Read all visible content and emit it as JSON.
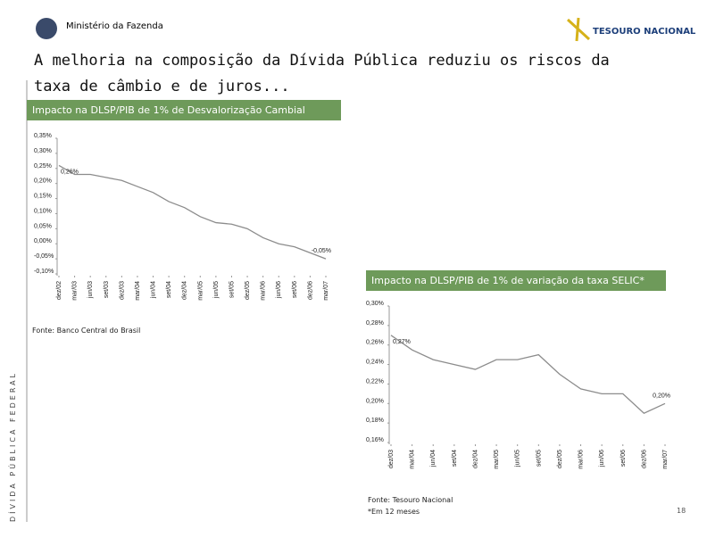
{
  "header": {
    "ministry": "Ministério da Fazenda",
    "logo": "TESOURO NACIONAL"
  },
  "title": "A melhoria na composição da Dívida Pública reduziu os riscos da taxa de câmbio e de juros...",
  "side_label": "DÍVIDA PÚBLICA FEDERAL",
  "page_number": "18",
  "chart_data": [
    {
      "type": "line",
      "title": "Impacto na DLSP/PIB de 1% de Desvalorização Cambial",
      "source": "Fonte: Banco Central do Brasil",
      "categories": [
        "dez/02",
        "mar/03",
        "jun/03",
        "set/03",
        "dez/03",
        "mar/04",
        "jun/04",
        "set/04",
        "dez/04",
        "mar/05",
        "jun/05",
        "set/05",
        "dez/05",
        "mar/06",
        "jun/06",
        "set/06",
        "dez/06",
        "mar/07"
      ],
      "values": [
        0.26,
        0.23,
        0.23,
        0.22,
        0.21,
        0.19,
        0.17,
        0.14,
        0.12,
        0.09,
        0.07,
        0.065,
        0.05,
        0.02,
        0.0,
        -0.01,
        -0.03,
        -0.05
      ],
      "color": "#8c8c8c",
      "annotations": [
        "0,26%",
        "-0,05%"
      ],
      "ylim": [
        -0.1,
        0.35
      ],
      "yticks": [
        {
          "value": -0.1,
          "label": "-0,10%"
        },
        {
          "value": -0.05,
          "label": "-0,05%"
        },
        {
          "value": 0,
          "label": "0,00%"
        },
        {
          "value": 0.05,
          "label": "0,05%"
        },
        {
          "value": 0.1,
          "label": "0,10%"
        },
        {
          "value": 0.15,
          "label": "0,15%"
        },
        {
          "value": 0.2,
          "label": "0,20%"
        },
        {
          "value": 0.25,
          "label": "0,25%"
        },
        {
          "value": 0.3,
          "label": "0,30%"
        },
        {
          "value": 0.35,
          "label": "0,35%"
        }
      ]
    },
    {
      "type": "line",
      "title": "Impacto na DLSP/PIB de 1% de variação da taxa SELIC*",
      "source": "Fonte: Tesouro Nacional",
      "note": "*Em 12 meses",
      "categories": [
        "dez/03",
        "mar/04",
        "jun/04",
        "set/04",
        "dez/04",
        "mar/05",
        "jun/05",
        "set/05",
        "dez/05",
        "mar/06",
        "jun/06",
        "set/06",
        "dez/06",
        "mar/07"
      ],
      "values": [
        0.27,
        0.255,
        0.245,
        0.24,
        0.235,
        0.245,
        0.245,
        0.25,
        0.23,
        0.215,
        0.21,
        0.21,
        0.19,
        0.2
      ],
      "color": "#8c8c8c",
      "annotations": [
        "0,27%",
        "0,20%"
      ],
      "ylim": [
        0.16,
        0.3
      ],
      "yticks": [
        {
          "value": 0.16,
          "label": "0,16%"
        },
        {
          "value": 0.18,
          "label": "0,18%"
        },
        {
          "value": 0.2,
          "label": "0,20%"
        },
        {
          "value": 0.22,
          "label": "0,22%"
        },
        {
          "value": 0.24,
          "label": "0,24%"
        },
        {
          "value": 0.26,
          "label": "0,26%"
        },
        {
          "value": 0.28,
          "label": "0,28%"
        },
        {
          "value": 0.3,
          "label": "0,30%"
        }
      ]
    }
  ]
}
